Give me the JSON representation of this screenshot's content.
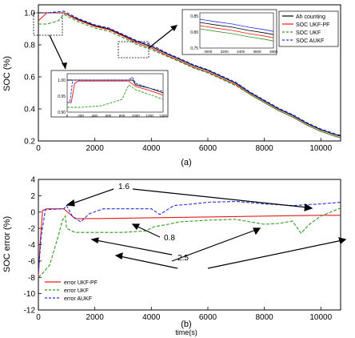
{
  "colors": {
    "ah": "#000000",
    "ukfpf": "#e8191a",
    "ukf": "#2e9a22",
    "aukf": "#2233dd"
  },
  "chart_data": [
    {
      "type": "line",
      "ylabel": "SOC (%)",
      "xlabel": "",
      "caption": "(a)",
      "xlim": [
        0,
        10700
      ],
      "ylim": [
        0.2,
        1.05
      ],
      "xticks": [
        "0",
        "2000",
        "4000",
        "6000",
        "8000",
        "10000"
      ],
      "yticks": [
        "0.2",
        "0.4",
        "0.6",
        "0.8",
        "1.0"
      ],
      "legend": [
        "Ah counting",
        "SOC UKF-PF",
        "SOC UKF",
        "SOC AUKF"
      ],
      "legend_position": "top-right",
      "series": [
        {
          "name": "Ah counting",
          "x": [
            0,
            300,
            900,
            1400,
            2000,
            2500,
            3000,
            3500,
            4000,
            4600,
            5000,
            5500,
            6000,
            6500,
            7000,
            7500,
            8000,
            8500,
            9000,
            9500,
            10000,
            10500,
            10700
          ],
          "values": [
            1.0,
            1.0,
            1.0,
            0.96,
            0.92,
            0.9,
            0.86,
            0.82,
            0.79,
            0.74,
            0.71,
            0.67,
            0.64,
            0.6,
            0.56,
            0.5,
            0.45,
            0.4,
            0.36,
            0.31,
            0.27,
            0.24,
            0.23
          ]
        },
        {
          "name": "SOC UKF-PF",
          "x": [
            0,
            300,
            900,
            1400,
            2000,
            2500,
            3000,
            3500,
            4000,
            4600,
            5000,
            5500,
            6000,
            6500,
            7000,
            7500,
            8000,
            8500,
            9000,
            9500,
            10000,
            10500,
            10700
          ],
          "values": [
            0.95,
            1.0,
            1.0,
            0.955,
            0.915,
            0.895,
            0.855,
            0.81,
            0.78,
            0.73,
            0.7,
            0.66,
            0.63,
            0.59,
            0.55,
            0.49,
            0.44,
            0.39,
            0.35,
            0.3,
            0.26,
            0.23,
            0.22
          ]
        },
        {
          "name": "SOC UKF",
          "x": [
            0,
            300,
            700,
            900,
            1400,
            2000,
            2500,
            3000,
            3500,
            4000,
            4600,
            5000,
            5500,
            6000,
            6500,
            7000,
            7500,
            8000,
            8500,
            9000,
            9500,
            10000,
            10500,
            10700
          ],
          "values": [
            0.93,
            0.93,
            0.95,
            0.99,
            0.945,
            0.905,
            0.885,
            0.845,
            0.8,
            0.77,
            0.725,
            0.695,
            0.655,
            0.625,
            0.585,
            0.545,
            0.49,
            0.44,
            0.39,
            0.35,
            0.3,
            0.26,
            0.23,
            0.22
          ]
        },
        {
          "name": "SOC AUKF",
          "x": [
            0,
            300,
            900,
            1400,
            2000,
            2500,
            3000,
            3500,
            4000,
            4600,
            5000,
            5500,
            6000,
            6500,
            7000,
            7500,
            8000,
            8500,
            9000,
            9500,
            10000,
            10500,
            10700
          ],
          "values": [
            1.0,
            1.0,
            1.01,
            0.965,
            0.925,
            0.905,
            0.865,
            0.825,
            0.8,
            0.745,
            0.715,
            0.675,
            0.645,
            0.605,
            0.565,
            0.505,
            0.455,
            0.405,
            0.365,
            0.315,
            0.275,
            0.245,
            0.235
          ]
        }
      ],
      "annotations": []
    },
    {
      "type": "line",
      "ylabel": "SOC error (%)",
      "xlabel": "time(s)",
      "caption": "(b)",
      "xlim": [
        0,
        10700
      ],
      "ylim": [
        -12,
        4
      ],
      "xticks": [
        "0",
        "2000",
        "4000",
        "6000",
        "8000",
        "10000"
      ],
      "yticks": [
        "4",
        "2",
        "0",
        "-2",
        "-4",
        "-6",
        "-8",
        "-10",
        "-12"
      ],
      "legend": [
        "error UKF-PF",
        "error UKF",
        "error AUKF"
      ],
      "legend_position": "bottom-left",
      "series": [
        {
          "name": "error UKF-PF",
          "x": [
            0,
            60,
            150,
            300,
            900,
            1300,
            2000,
            4000,
            6000,
            8000,
            10000,
            10700
          ],
          "values": [
            -8,
            -4,
            0.2,
            0.4,
            0.4,
            -0.8,
            -0.8,
            -0.7,
            -0.6,
            -0.5,
            -0.4,
            -0.4
          ]
        },
        {
          "name": "error UKF",
          "x": [
            0,
            150,
            400,
            700,
            850,
            950,
            1000,
            1300,
            1500,
            2000,
            3000,
            3800,
            4100,
            4600,
            5000,
            6000,
            7000,
            7500,
            8000,
            8500,
            9000,
            9300,
            9600,
            10000,
            10700
          ],
          "values": [
            -8,
            -7.5,
            -6.5,
            -3,
            -1,
            -0.5,
            -2,
            -2.5,
            -2.5,
            -2.5,
            -2.5,
            -2.3,
            -1.8,
            -1.5,
            -1.2,
            -1.0,
            -0.9,
            -1.2,
            -1.5,
            -1.4,
            -1.1,
            -2.6,
            -1.5,
            -0.5,
            0.5
          ]
        },
        {
          "name": "error AUKF",
          "x": [
            0,
            100,
            250,
            900,
            1000,
            1200,
            1500,
            1800,
            2300,
            3000,
            4000,
            4300,
            4800,
            5500,
            6000,
            7000,
            8000,
            9000,
            9500,
            10000,
            10700
          ],
          "values": [
            -7.5,
            -3,
            0.3,
            0.4,
            0.8,
            -0.5,
            -1.2,
            -0.2,
            0.4,
            0.4,
            0.4,
            -0.3,
            0.8,
            1.0,
            1.2,
            1.3,
            1.0,
            0.8,
            0.9,
            1.0,
            1.2
          ]
        }
      ],
      "annotations": [
        "1.6",
        "0.8",
        "2.5"
      ]
    }
  ],
  "inset_a1": {
    "xticks": [
      "0",
      "200",
      "400",
      "600",
      "800",
      "1000",
      "1200",
      "1400"
    ],
    "yticks": [
      "0.90",
      "0.95",
      "1.00"
    ],
    "xlim": [
      0,
      1400
    ],
    "ylim": [
      0.9,
      1.02
    ]
  },
  "inset_a2": {
    "xticks": [
      "3000",
      "3200",
      "3400",
      "3600",
      "3800"
    ],
    "yticks": [
      "0.75",
      "0.80",
      "0.85"
    ],
    "xlim": [
      2900,
      3800
    ],
    "ylim": [
      0.75,
      0.86
    ]
  }
}
